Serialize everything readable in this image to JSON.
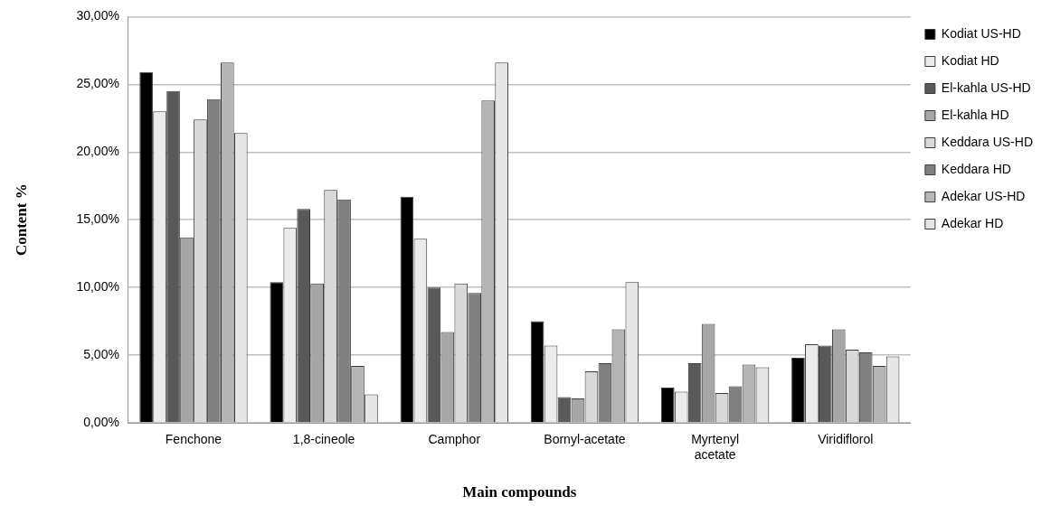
{
  "chart_data": {
    "type": "bar",
    "xlabel": "Main compounds",
    "ylabel": "Content %",
    "categories": [
      "Fenchone",
      "1,8-cineole",
      "Camphor",
      "Bornyl-acetate",
      "Myrtenyl acetate",
      "Viridiflorol"
    ],
    "series": [
      {
        "name": "Kodiat US-HD",
        "color": "#000000",
        "values": [
          25.9,
          10.4,
          16.7,
          7.5,
          2.6,
          4.8
        ]
      },
      {
        "name": "Kodiat HD",
        "color": "#ebebeb",
        "values": [
          23.0,
          14.4,
          13.6,
          5.7,
          2.3,
          5.8
        ]
      },
      {
        "name": "El-kahla US-HD",
        "color": "#595959",
        "values": [
          24.5,
          15.8,
          10.0,
          1.9,
          4.4,
          5.7
        ]
      },
      {
        "name": "El-kahla HD",
        "color": "#a6a6a6",
        "values": [
          13.7,
          10.3,
          6.7,
          1.8,
          7.3,
          6.9
        ]
      },
      {
        "name": "Keddara US-HD",
        "color": "#d9d9d9",
        "values": [
          22.4,
          17.2,
          10.3,
          3.8,
          2.2,
          5.4
        ]
      },
      {
        "name": "Keddara HD",
        "color": "#808080",
        "values": [
          23.9,
          16.5,
          9.6,
          4.4,
          2.7,
          5.2
        ]
      },
      {
        "name": "Adekar US-HD",
        "color": "#b5b5b5",
        "values": [
          26.6,
          4.2,
          23.8,
          6.9,
          4.3,
          4.2
        ]
      },
      {
        "name": "Adekar HD",
        "color": "#e6e6e6",
        "values": [
          21.4,
          2.1,
          26.6,
          10.4,
          4.1,
          4.9
        ]
      }
    ],
    "ylim": [
      0,
      30
    ],
    "yticks": [
      {
        "value": 0,
        "label": "0,00%"
      },
      {
        "value": 5,
        "label": "5,00%"
      },
      {
        "value": 10,
        "label": "10,00%"
      },
      {
        "value": 15,
        "label": "15,00%"
      },
      {
        "value": 20,
        "label": "20,00%"
      },
      {
        "value": 25,
        "label": "25,00%"
      },
      {
        "value": 30,
        "label": "30,00%"
      }
    ],
    "grid": "y",
    "legend": "right"
  }
}
